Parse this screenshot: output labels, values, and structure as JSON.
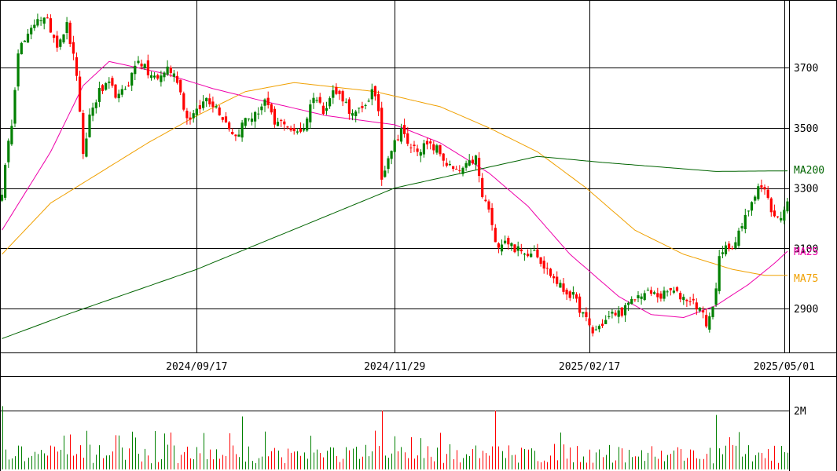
{
  "chart_data": {
    "type": "candlestick",
    "price_ticks": [
      "3700",
      "3500",
      "3300",
      "3100",
      "2900"
    ],
    "price_tick_values": [
      3700,
      3500,
      3300,
      3100,
      2900
    ],
    "x_ticks": [
      "2024/09/17",
      "2024/11/29",
      "2025/02/17",
      "2025/05/01"
    ],
    "x_tick_indices": [
      60,
      121,
      181,
      241
    ],
    "volume_tick": "2M",
    "volume_tick_value": 2000000,
    "ma_labels": {
      "ma200": "MA200",
      "ma25": "MA25",
      "ma75": "MA75"
    },
    "colors": {
      "up": "#008000",
      "down": "#ff0000",
      "ma200": "#006400",
      "ma25": "#ee00aa",
      "ma75": "#f0a000",
      "grid": "#000000"
    },
    "key_points": [
      [
        0,
        3290
      ],
      [
        3,
        3520
      ],
      [
        5,
        3760
      ],
      [
        8,
        3800
      ],
      [
        11,
        3870
      ],
      [
        14,
        3850
      ],
      [
        17,
        3780
      ],
      [
        20,
        3840
      ],
      [
        23,
        3680
      ],
      [
        25,
        3400
      ],
      [
        27,
        3540
      ],
      [
        30,
        3620
      ],
      [
        33,
        3640
      ],
      [
        36,
        3600
      ],
      [
        39,
        3650
      ],
      [
        42,
        3730
      ],
      [
        45,
        3680
      ],
      [
        48,
        3660
      ],
      [
        51,
        3700
      ],
      [
        54,
        3660
      ],
      [
        57,
        3530
      ],
      [
        60,
        3550
      ],
      [
        63,
        3600
      ],
      [
        66,
        3570
      ],
      [
        69,
        3520
      ],
      [
        72,
        3470
      ],
      [
        75,
        3530
      ],
      [
        78,
        3540
      ],
      [
        81,
        3590
      ],
      [
        84,
        3510
      ],
      [
        87,
        3520
      ],
      [
        90,
        3480
      ],
      [
        93,
        3500
      ],
      [
        96,
        3610
      ],
      [
        99,
        3560
      ],
      [
        102,
        3620
      ],
      [
        105,
        3600
      ],
      [
        108,
        3540
      ],
      [
        111,
        3560
      ],
      [
        114,
        3620
      ],
      [
        116,
        3560
      ],
      [
        117,
        3330
      ],
      [
        119,
        3410
      ],
      [
        121,
        3450
      ],
      [
        123,
        3500
      ],
      [
        125,
        3440
      ],
      [
        128,
        3430
      ],
      [
        131,
        3440
      ],
      [
        134,
        3430
      ],
      [
        137,
        3380
      ],
      [
        140,
        3350
      ],
      [
        143,
        3370
      ],
      [
        146,
        3400
      ],
      [
        148,
        3270
      ],
      [
        150,
        3230
      ],
      [
        152,
        3110
      ],
      [
        155,
        3130
      ],
      [
        158,
        3100
      ],
      [
        161,
        3080
      ],
      [
        164,
        3100
      ],
      [
        167,
        3040
      ],
      [
        170,
        3000
      ],
      [
        173,
        2960
      ],
      [
        176,
        2940
      ],
      [
        179,
        2880
      ],
      [
        182,
        2820
      ],
      [
        185,
        2850
      ],
      [
        188,
        2880
      ],
      [
        191,
        2890
      ],
      [
        194,
        2920
      ],
      [
        197,
        2950
      ],
      [
        200,
        2950
      ],
      [
        203,
        2940
      ],
      [
        206,
        2960
      ],
      [
        209,
        2940
      ],
      [
        212,
        2930
      ],
      [
        215,
        2900
      ],
      [
        217,
        2850
      ],
      [
        219,
        2900
      ],
      [
        221,
        3060
      ],
      [
        223,
        3100
      ],
      [
        226,
        3120
      ],
      [
        229,
        3200
      ],
      [
        231,
        3260
      ],
      [
        233,
        3310
      ],
      [
        235,
        3290
      ],
      [
        236,
        3260
      ],
      [
        238,
        3200
      ],
      [
        240,
        3210
      ],
      [
        242,
        3250
      ]
    ],
    "ma200_points": [
      [
        0,
        2800
      ],
      [
        20,
        2880
      ],
      [
        60,
        3030
      ],
      [
        121,
        3300
      ],
      [
        165,
        3405
      ],
      [
        185,
        3385
      ],
      [
        220,
        3355
      ],
      [
        242,
        3357
      ]
    ],
    "ma25_points": [
      [
        0,
        3160
      ],
      [
        15,
        3420
      ],
      [
        25,
        3640
      ],
      [
        33,
        3720
      ],
      [
        50,
        3680
      ],
      [
        65,
        3630
      ],
      [
        80,
        3590
      ],
      [
        100,
        3540
      ],
      [
        121,
        3510
      ],
      [
        135,
        3450
      ],
      [
        150,
        3350
      ],
      [
        162,
        3240
      ],
      [
        175,
        3080
      ],
      [
        190,
        2940
      ],
      [
        200,
        2880
      ],
      [
        210,
        2870
      ],
      [
        220,
        2910
      ],
      [
        230,
        2980
      ],
      [
        238,
        3050
      ],
      [
        242,
        3090
      ]
    ],
    "ma75_points": [
      [
        0,
        3080
      ],
      [
        15,
        3250
      ],
      [
        30,
        3350
      ],
      [
        45,
        3450
      ],
      [
        60,
        3540
      ],
      [
        75,
        3620
      ],
      [
        90,
        3650
      ],
      [
        115,
        3620
      ],
      [
        135,
        3570
      ],
      [
        150,
        3500
      ],
      [
        165,
        3420
      ],
      [
        180,
        3300
      ],
      [
        195,
        3160
      ],
      [
        210,
        3080
      ],
      [
        225,
        3030
      ],
      [
        235,
        3010
      ],
      [
        242,
        3010
      ]
    ],
    "volume_spikes": {
      "0": 2150000,
      "117": 2000000,
      "152": 2000000,
      "74": 1800000,
      "220": 1850000
    }
  }
}
